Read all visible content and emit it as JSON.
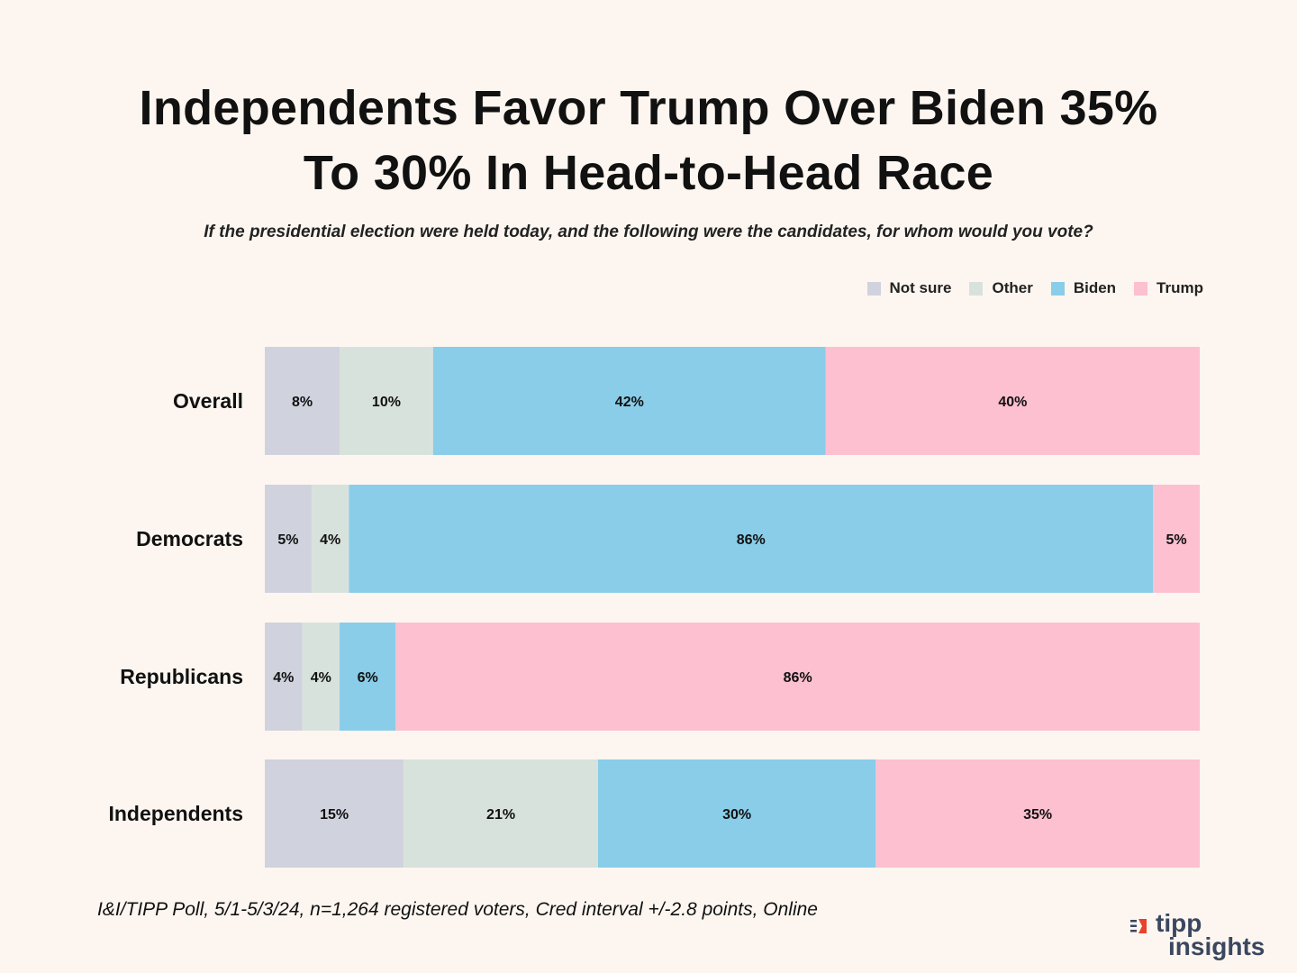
{
  "title_line1": "Independents Favor Trump Over Biden 35%",
  "title_line2": "To 30% In Head-to-Head Race",
  "subtitle": "If the presidential election were held today, and the following were the candidates, for whom would you vote?",
  "source": "I&I/TIPP Poll, 5/1-5/3/24, n=1,264 registered voters, Cred interval +/-2.8 points, Online",
  "logo": {
    "word1": "tipp",
    "word2": "insights",
    "accent": "#e8412c",
    "color": "#3b4760"
  },
  "chart_data": {
    "type": "bar",
    "orientation": "horizontal",
    "stacked": true,
    "title": "Independents Favor Trump Over Biden 35% To 30% In Head-to-Head Race",
    "categories": [
      "Overall",
      "Democrats",
      "Republicans",
      "Independents"
    ],
    "series": [
      {
        "name": "Not sure",
        "color": "#d0d2de",
        "values": [
          8,
          5,
          4,
          15
        ],
        "labels": [
          "8%",
          "5%",
          "4%",
          "15%"
        ]
      },
      {
        "name": "Other",
        "color": "#d8e2dc",
        "values": [
          10,
          4,
          4,
          21
        ],
        "labels": [
          "10%",
          "4%",
          "4%",
          "21%"
        ]
      },
      {
        "name": "Biden",
        "color": "#89cde9",
        "values": [
          42,
          86,
          6,
          30
        ],
        "labels": [
          "42%",
          "86%",
          "6%",
          "30%"
        ]
      },
      {
        "name": "Trump",
        "color": "#fcc0d0",
        "values": [
          40,
          5,
          86,
          35
        ],
        "labels": [
          "40%",
          "5%",
          "86%",
          "35%"
        ]
      }
    ],
    "legend_position": "top-right",
    "xlabel": "",
    "ylabel": "",
    "grid": false
  }
}
